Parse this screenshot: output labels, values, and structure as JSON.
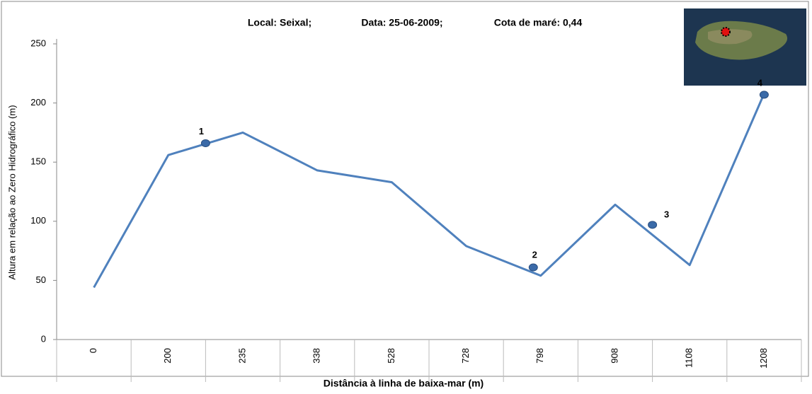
{
  "chart_data": {
    "type": "line",
    "title_parts": [
      "Local: Seixal;",
      "Data: 25-06-2009;",
      "Cota de maré: 0,44"
    ],
    "x_label": "Distância à linha de baixa-mar (m)",
    "y_label": "Altura em relação ao Zero Hidrográfico (m)",
    "categories": [
      "0",
      "200",
      "235",
      "338",
      "528",
      "728",
      "798",
      "908",
      "1108",
      "1208"
    ],
    "series": [
      {
        "color": "#4f81bd",
        "values": [
          44,
          156,
          175,
          143,
          133,
          79,
          54,
          114,
          63,
          208
        ]
      }
    ],
    "markers": {
      "color": "#3a6aa8",
      "labels": [
        "1",
        "2",
        "3",
        "4"
      ],
      "x": [
        1.5,
        5.9,
        7.5,
        9
      ],
      "values": [
        166,
        61,
        97,
        207
      ]
    },
    "ylim": [
      0,
      250
    ],
    "yticks": [
      0,
      50,
      100,
      150,
      200,
      250
    ]
  }
}
